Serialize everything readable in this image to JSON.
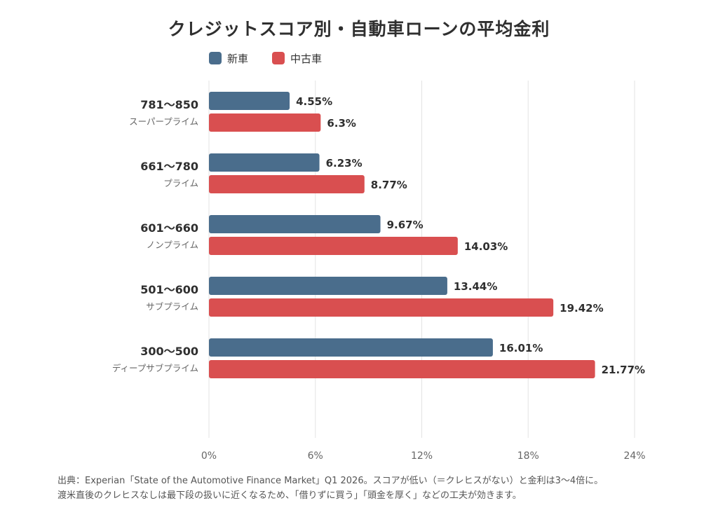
{
  "chart_data": {
    "type": "bar",
    "orientation": "horizontal",
    "title": "クレジットスコア別・自動車ローンの平均金利",
    "categories": [
      {
        "score": "781〜850",
        "tier": "スーパープライム"
      },
      {
        "score": "661〜780",
        "tier": "プライム"
      },
      {
        "score": "601〜660",
        "tier": "ノンプライム"
      },
      {
        "score": "501〜600",
        "tier": "サブプライム"
      },
      {
        "score": "300〜500",
        "tier": "ディープサブプライム"
      }
    ],
    "series": [
      {
        "name": "新車",
        "color": "#4a6d8c",
        "values": [
          4.55,
          6.23,
          9.67,
          13.44,
          16.01
        ],
        "labels": [
          "4.55%",
          "6.23%",
          "9.67%",
          "13.44%",
          "16.01%"
        ]
      },
      {
        "name": "中古車",
        "color": "#d94f50",
        "values": [
          6.3,
          8.77,
          14.03,
          19.42,
          21.77
        ],
        "labels": [
          "6.3%",
          "8.77%",
          "14.03%",
          "19.42%",
          "21.77%"
        ]
      }
    ],
    "xlim": [
      0,
      24
    ],
    "x_ticks": [
      0,
      6,
      12,
      18,
      24
    ],
    "x_tick_labels": [
      "0%",
      "6%",
      "12%",
      "18%",
      "24%"
    ],
    "grid": true,
    "legend_position": "top-left"
  },
  "footnote": {
    "line1": "出典：Experian「State of the Automotive Finance Market」Q1 2026。スコアが低い（＝クレヒスがない）と金利は3〜4倍に。",
    "line2": "渡米直後のクレヒスなしは最下段の扱いに近くなるため、「借りずに買う」「頭金を厚く」などの工夫が効きます。"
  },
  "colors": {
    "grid": "#e3e3e3",
    "text": "#333333",
    "subtext": "#666666"
  }
}
